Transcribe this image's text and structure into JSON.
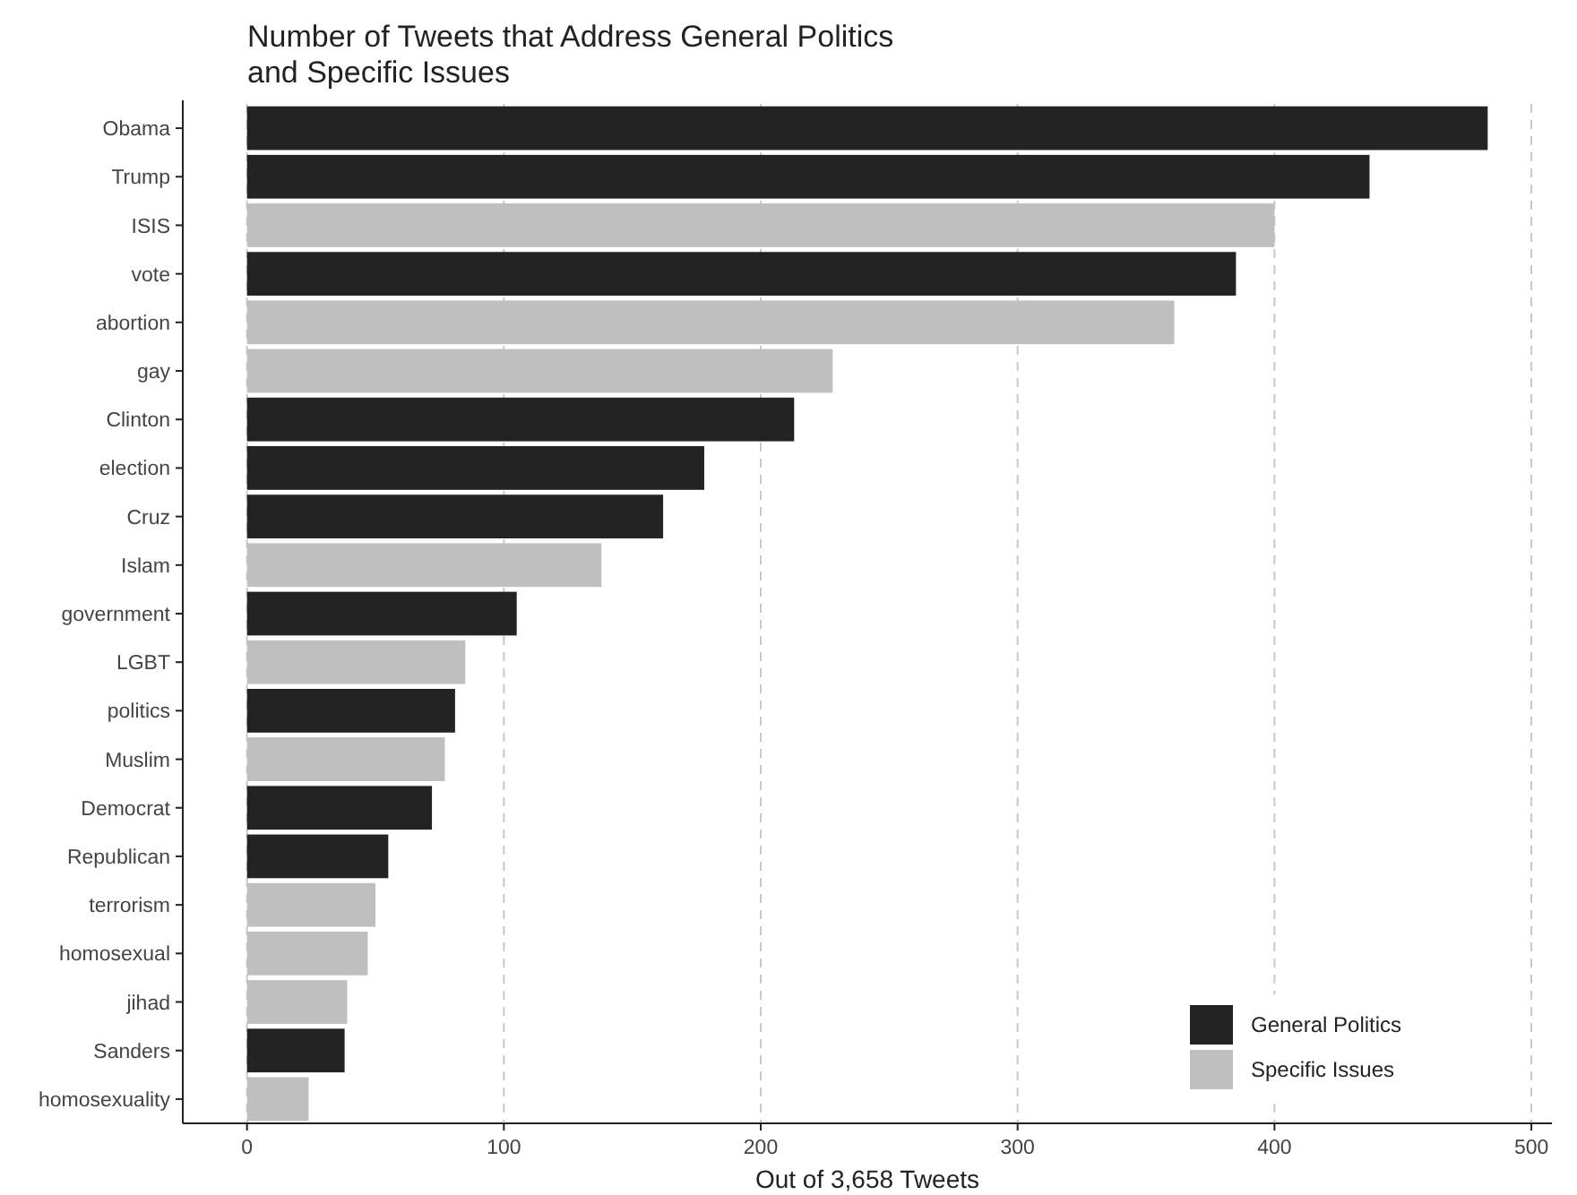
{
  "chart_data": {
    "type": "bar",
    "orientation": "horizontal",
    "title": "Number of Tweets that Address General Politics\nand Specific Issues",
    "xlabel": "Out of 3,658 Tweets",
    "categories": [
      "Obama",
      "Trump",
      "ISIS",
      "vote",
      "abortion",
      "gay",
      "Clinton",
      "election",
      "Cruz",
      "Islam",
      "government",
      "LGBT",
      "politics",
      "Muslim",
      "Democrat",
      "Republican",
      "terrorism",
      "homosexual",
      "jihad",
      "Sanders",
      "homosexuality"
    ],
    "series": [
      {
        "name": "General Politics",
        "color": "#232323",
        "values": [
          483,
          437,
          null,
          385,
          null,
          null,
          213,
          178,
          162,
          null,
          105,
          null,
          81,
          null,
          72,
          55,
          null,
          null,
          null,
          38,
          null
        ]
      },
      {
        "name": "Specific Issues",
        "color": "#bfbfbf",
        "values": [
          null,
          null,
          400,
          null,
          361,
          228,
          null,
          null,
          null,
          138,
          null,
          85,
          null,
          77,
          null,
          null,
          50,
          47,
          39,
          null,
          24
        ]
      }
    ],
    "xlim": [
      -25,
      508
    ],
    "xticks": [
      0,
      100,
      200,
      300,
      400,
      500
    ],
    "grid": "x",
    "legend": "bottom right"
  }
}
